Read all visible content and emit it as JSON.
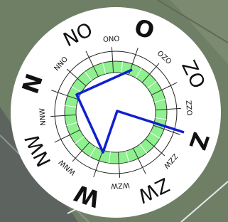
{
  "compass": {
    "labels": [
      "N",
      "NNO",
      "NO",
      "ONO",
      "O",
      "OZO",
      "ZO",
      "ZZO",
      "Z",
      "ZZW",
      "ZW",
      "WZW",
      "W",
      "WNW",
      "NW",
      "NNW"
    ]
  }
}
